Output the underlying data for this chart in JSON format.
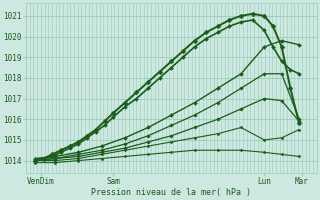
{
  "background_color": "#cce8e0",
  "grid_color": "#99ccbb",
  "line_color": "#1a5c1a",
  "text_color": "#1a5c1a",
  "ylabel_values": [
    1014,
    1015,
    1016,
    1017,
    1018,
    1019,
    1020,
    1021
  ],
  "x_ticks_labels": [
    "VenDim",
    "Sam",
    "Lun",
    "Mar"
  ],
  "x_ticks_pos": [
    0.05,
    0.3,
    0.82,
    0.95
  ],
  "xlabel": "Pression niveau de la mer( hPa )",
  "ylim": [
    1013.4,
    1021.6
  ],
  "xlim": [
    0.0,
    1.0
  ],
  "lines": [
    {
      "x": [
        0.03,
        0.06,
        0.09,
        0.12,
        0.15,
        0.18,
        0.21,
        0.24,
        0.27,
        0.3,
        0.34,
        0.38,
        0.42,
        0.46,
        0.5,
        0.54,
        0.58,
        0.62,
        0.66,
        0.7,
        0.74,
        0.78,
        0.82,
        0.85,
        0.88,
        0.91,
        0.94
      ],
      "y": [
        1014.0,
        1014.1,
        1014.3,
        1014.5,
        1014.7,
        1014.9,
        1015.2,
        1015.5,
        1015.9,
        1016.3,
        1016.8,
        1017.3,
        1017.8,
        1018.3,
        1018.8,
        1019.3,
        1019.8,
        1020.2,
        1020.5,
        1020.8,
        1021.0,
        1021.1,
        1021.0,
        1020.5,
        1019.5,
        1017.5,
        1015.8
      ],
      "lw": 1.4,
      "ms": 2.5
    },
    {
      "x": [
        0.03,
        0.06,
        0.09,
        0.12,
        0.15,
        0.18,
        0.21,
        0.24,
        0.27,
        0.3,
        0.34,
        0.38,
        0.42,
        0.46,
        0.5,
        0.54,
        0.58,
        0.62,
        0.66,
        0.7,
        0.74,
        0.78,
        0.82,
        0.85,
        0.88,
        0.91,
        0.94
      ],
      "y": [
        1014.0,
        1014.1,
        1014.2,
        1014.4,
        1014.6,
        1014.8,
        1015.1,
        1015.4,
        1015.7,
        1016.1,
        1016.6,
        1017.0,
        1017.5,
        1018.0,
        1018.5,
        1019.0,
        1019.5,
        1019.9,
        1020.2,
        1020.5,
        1020.7,
        1020.8,
        1020.3,
        1019.5,
        1018.8,
        1018.4,
        1018.2
      ],
      "lw": 1.2,
      "ms": 2.0
    },
    {
      "x": [
        0.03,
        0.1,
        0.18,
        0.26,
        0.34,
        0.42,
        0.5,
        0.58,
        0.66,
        0.74,
        0.82,
        0.88,
        0.94
      ],
      "y": [
        1014.1,
        1014.2,
        1014.4,
        1014.7,
        1015.1,
        1015.6,
        1016.2,
        1016.8,
        1017.5,
        1018.2,
        1019.5,
        1019.8,
        1019.6
      ],
      "lw": 1.0,
      "ms": 2.0
    },
    {
      "x": [
        0.03,
        0.1,
        0.18,
        0.26,
        0.34,
        0.42,
        0.5,
        0.58,
        0.66,
        0.74,
        0.82,
        0.88,
        0.94
      ],
      "y": [
        1014.0,
        1014.1,
        1014.3,
        1014.5,
        1014.8,
        1015.2,
        1015.7,
        1016.2,
        1016.8,
        1017.5,
        1018.2,
        1018.2,
        1016.0
      ],
      "lw": 0.9,
      "ms": 1.8
    },
    {
      "x": [
        0.03,
        0.1,
        0.18,
        0.26,
        0.34,
        0.42,
        0.5,
        0.58,
        0.66,
        0.74,
        0.82,
        0.88,
        0.94
      ],
      "y": [
        1014.0,
        1014.1,
        1014.2,
        1014.4,
        1014.6,
        1014.9,
        1015.2,
        1015.6,
        1016.0,
        1016.5,
        1017.0,
        1016.9,
        1015.9
      ],
      "lw": 0.9,
      "ms": 1.8
    },
    {
      "x": [
        0.03,
        0.1,
        0.18,
        0.26,
        0.34,
        0.42,
        0.5,
        0.58,
        0.66,
        0.74,
        0.82,
        0.88,
        0.94
      ],
      "y": [
        1014.0,
        1014.0,
        1014.1,
        1014.3,
        1014.5,
        1014.7,
        1014.9,
        1015.1,
        1015.3,
        1015.6,
        1015.0,
        1015.1,
        1015.5
      ],
      "lw": 0.8,
      "ms": 1.5
    },
    {
      "x": [
        0.03,
        0.1,
        0.18,
        0.26,
        0.34,
        0.42,
        0.5,
        0.58,
        0.66,
        0.74,
        0.82,
        0.88,
        0.94
      ],
      "y": [
        1013.9,
        1013.9,
        1014.0,
        1014.1,
        1014.2,
        1014.3,
        1014.4,
        1014.5,
        1014.5,
        1014.5,
        1014.4,
        1014.3,
        1014.2
      ],
      "lw": 0.8,
      "ms": 1.5
    }
  ],
  "n_vgrid": 80,
  "figsize": [
    3.2,
    2.0
  ],
  "dpi": 100
}
